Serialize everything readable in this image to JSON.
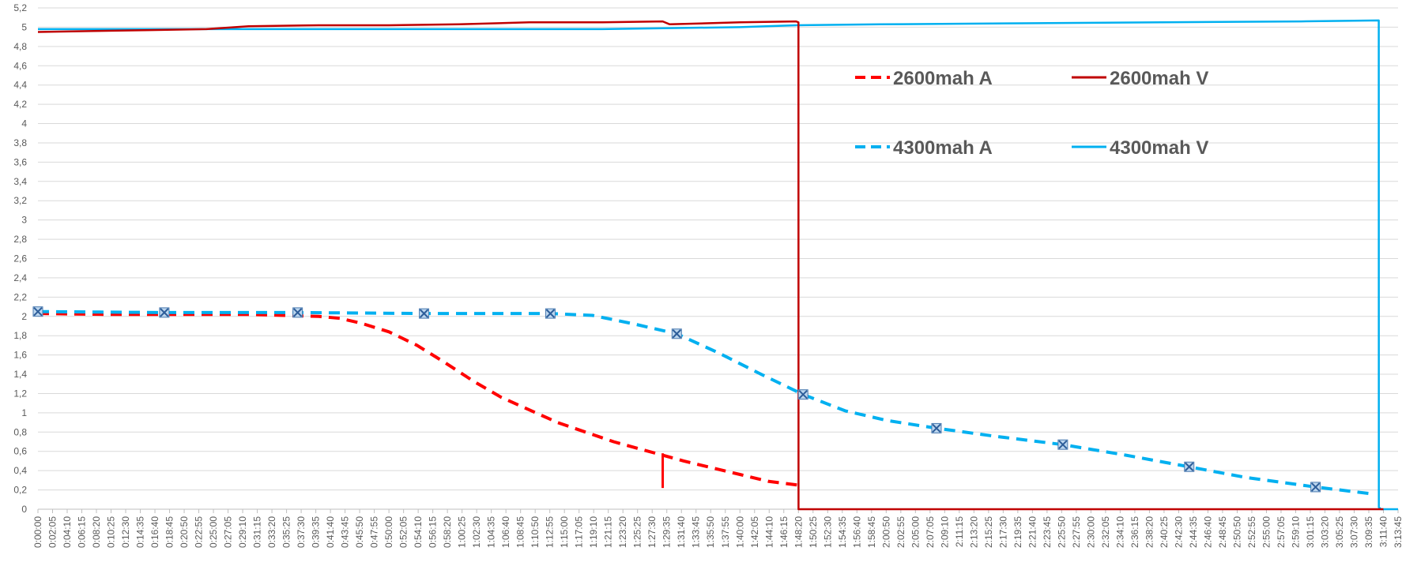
{
  "chart_data": {
    "type": "line",
    "title": "",
    "xlabel": "",
    "ylabel": "",
    "ylim": [
      0,
      5.2
    ],
    "y_ticks": [
      "0",
      "0,2",
      "0,4",
      "0,6",
      "0,8",
      "1",
      "1,2",
      "1,4",
      "1,6",
      "1,8",
      "2",
      "2,2",
      "2,4",
      "2,6",
      "2,8",
      "3",
      "3,2",
      "3,4",
      "3,6",
      "3,8",
      "4",
      "4,2",
      "4,4",
      "4,6",
      "4,8",
      "5",
      "5,2"
    ],
    "x_ticks": [
      "0:00:00",
      "0:02:05",
      "0:04:10",
      "0:06:15",
      "0:08:20",
      "0:10:25",
      "0:12:30",
      "0:14:35",
      "0:16:40",
      "0:18:45",
      "0:20:50",
      "0:22:55",
      "0:25:00",
      "0:27:05",
      "0:29:10",
      "0:31:15",
      "0:33:20",
      "0:35:25",
      "0:37:30",
      "0:39:35",
      "0:41:40",
      "0:43:45",
      "0:45:50",
      "0:47:55",
      "0:50:00",
      "0:52:05",
      "0:54:10",
      "0:56:15",
      "0:58:20",
      "1:00:25",
      "1:02:30",
      "1:04:35",
      "1:06:40",
      "1:08:45",
      "1:10:50",
      "1:12:55",
      "1:15:00",
      "1:17:05",
      "1:19:10",
      "1:21:15",
      "1:23:20",
      "1:25:25",
      "1:27:30",
      "1:29:35",
      "1:31:40",
      "1:33:45",
      "1:35:50",
      "1:37:55",
      "1:40:00",
      "1:42:05",
      "1:44:10",
      "1:46:15",
      "1:48:20",
      "1:50:25",
      "1:52:30",
      "1:54:35",
      "1:56:40",
      "1:58:45",
      "2:00:50",
      "2:02:55",
      "2:05:00",
      "2:07:05",
      "2:09:10",
      "2:11:15",
      "2:13:20",
      "2:15:25",
      "2:17:30",
      "2:19:35",
      "2:21:40",
      "2:23:45",
      "2:25:50",
      "2:27:55",
      "2:30:00",
      "2:32:05",
      "2:34:10",
      "2:36:15",
      "2:38:20",
      "2:40:25",
      "2:42:30",
      "2:44:35",
      "2:46:40",
      "2:48:45",
      "2:50:50",
      "2:52:55",
      "2:55:00",
      "2:57:05",
      "2:59:10",
      "3:01:15",
      "3:03:20",
      "3:05:25",
      "3:07:30",
      "3:09:35",
      "3:11:40",
      "3:13:45"
    ],
    "grid": true,
    "legend_position": "top-right",
    "series": [
      {
        "name": "2600mah A",
        "color": "#ff0000",
        "dash": "dashed",
        "x": [
          "0:00:00",
          "0:10:00",
          "0:20:00",
          "0:30:00",
          "0:35:00",
          "0:40:00",
          "0:43:00",
          "0:46:00",
          "0:50:00",
          "0:54:00",
          "0:58:00",
          "1:02:00",
          "1:06:00",
          "1:10:00",
          "1:14:00",
          "1:18:00",
          "1:22:00",
          "1:26:00",
          "1:29:00",
          "1:32:00",
          "1:36:00",
          "1:40:00",
          "1:44:00",
          "1:48:20"
        ],
        "y": [
          2.03,
          2.02,
          2.02,
          2.02,
          2.01,
          2.0,
          1.98,
          1.93,
          1.84,
          1.7,
          1.52,
          1.33,
          1.16,
          1.03,
          0.9,
          0.8,
          0.7,
          0.62,
          0.56,
          0.5,
          0.43,
          0.36,
          0.29,
          0.25
        ]
      },
      {
        "name": "2600mah V",
        "color": "#c00000",
        "dash": "solid",
        "x": [
          "0:00:00",
          "0:08:00",
          "0:16:00",
          "0:24:00",
          "0:30:00",
          "0:40:00",
          "0:50:00",
          "1:00:00",
          "1:10:00",
          "1:20:00",
          "1:29:00",
          "1:30:00",
          "1:40:00",
          "1:48:00",
          "1:48:20",
          "1:48:21",
          "3:11:40"
        ],
        "y": [
          4.95,
          4.96,
          4.97,
          4.98,
          5.01,
          5.02,
          5.02,
          5.03,
          5.05,
          5.05,
          5.06,
          5.03,
          5.05,
          5.06,
          5.05,
          0,
          0
        ]
      },
      {
        "name": "4300mah A",
        "color": "#00b0f0",
        "dash": "dashed",
        "x": [
          "0:00:00",
          "0:18:00",
          "0:37:00",
          "0:55:00",
          "1:13:00",
          "1:19:00",
          "1:25:00",
          "1:31:00",
          "1:37:00",
          "1:43:00",
          "1:49:00",
          "1:55:00",
          "2:01:00",
          "2:08:00",
          "2:16:00",
          "2:26:00",
          "2:35:00",
          "2:44:00",
          "2:52:00",
          "3:02:00",
          "3:10:00"
        ],
        "y": [
          2.05,
          2.04,
          2.04,
          2.03,
          2.03,
          2.01,
          1.92,
          1.82,
          1.62,
          1.4,
          1.19,
          1.02,
          0.92,
          0.84,
          0.76,
          0.67,
          0.56,
          0.44,
          0.33,
          0.23,
          0.16
        ]
      },
      {
        "name": "4300mah V",
        "color": "#00b0f0",
        "dash": "solid",
        "x": [
          "0:00:00",
          "0:20:00",
          "0:40:00",
          "1:00:00",
          "1:12:00",
          "1:20:00",
          "1:40:00",
          "1:48:00",
          "2:00:00",
          "2:20:00",
          "2:40:00",
          "3:00:00",
          "3:11:00",
          "3:11:01",
          "3:11:20",
          "3:13:45"
        ],
        "y": [
          4.98,
          4.98,
          4.98,
          4.98,
          4.98,
          4.98,
          5.0,
          5.02,
          5.03,
          5.04,
          5.05,
          5.06,
          5.07,
          0.02,
          0,
          0
        ]
      }
    ],
    "markers": [
      {
        "series": "4300mah A",
        "x": [
          "0:00:00",
          "0:18:00",
          "0:37:00",
          "0:55:00",
          "1:13:00",
          "1:31:00",
          "1:49:00",
          "2:08:00",
          "2:26:00",
          "2:44:00",
          "3:02:00"
        ],
        "y": [
          2.05,
          2.04,
          2.04,
          2.03,
          2.03,
          1.82,
          1.19,
          0.84,
          0.67,
          0.44,
          0.23
        ]
      }
    ],
    "annotation_spike": {
      "series": "2600mah A",
      "x": "1:29:00",
      "y": [
        0.22,
        0.58
      ]
    }
  }
}
